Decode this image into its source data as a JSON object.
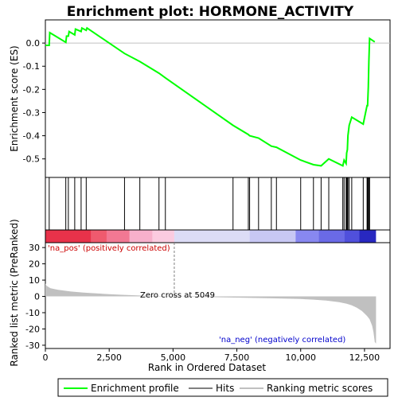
{
  "chart_data": {
    "type": "line",
    "title": "Enrichment plot: HORMONE_ACTIVITY",
    "xlabel": "Rank in Ordered Dataset",
    "xlim": [
      0,
      13500
    ],
    "x_ticks": [
      0,
      2500,
      5000,
      7500,
      10000,
      12500
    ],
    "x_tick_labels": [
      "0",
      "2,500",
      "5,000",
      "7,500",
      "10,000",
      "12,500"
    ],
    "top_panel": {
      "ylabel": "Enrichment score (ES)",
      "ylim": [
        -0.58,
        0.1
      ],
      "y_ticks": [
        0.0,
        -0.1,
        -0.2,
        -0.3,
        -0.4,
        -0.5
      ],
      "y_tick_labels": [
        "0.0",
        "-0.1",
        "-0.2",
        "-0.3",
        "-0.4",
        "-0.5"
      ],
      "series": [
        {
          "name": "Enrichment profile",
          "color": "#00ff00",
          "x": [
            0,
            150,
            170,
            800,
            830,
            900,
            930,
            1150,
            1180,
            1400,
            1430,
            1600,
            1630,
            3100,
            3700,
            4450,
            4700,
            7350,
            7950,
            8000,
            8350,
            8850,
            9050,
            10000,
            10500,
            10800,
            11100,
            11650,
            11700,
            11780,
            11800,
            11830,
            11850,
            11900,
            12000,
            12450,
            12600,
            12620,
            12650,
            12670,
            12700,
            12900
          ],
          "y": [
            -0.01,
            -0.01,
            0.045,
            0.003,
            0.03,
            0.03,
            0.05,
            0.035,
            0.06,
            0.05,
            0.065,
            0.055,
            0.065,
            -0.045,
            -0.08,
            -0.13,
            -0.15,
            -0.355,
            -0.395,
            -0.4,
            -0.41,
            -0.445,
            -0.45,
            -0.505,
            -0.525,
            -0.53,
            -0.5,
            -0.53,
            -0.505,
            -0.52,
            -0.475,
            -0.46,
            -0.4,
            -0.355,
            -0.32,
            -0.35,
            -0.27,
            -0.27,
            -0.19,
            -0.08,
            0.02,
            0.005
          ]
        }
      ]
    },
    "hits_panel": {
      "hit_ranks": [
        150,
        800,
        900,
        1150,
        1400,
        1600,
        3100,
        3700,
        4450,
        4700,
        7350,
        7950,
        8000,
        8350,
        8850,
        9050,
        10000,
        10500,
        10800,
        11100,
        11650,
        11700,
        11780,
        11800,
        11830,
        11850,
        11900,
        12000,
        12450,
        12600,
        12620,
        12650,
        12670,
        12700
      ]
    },
    "color_bar": {
      "segments": [
        {
          "from": 0,
          "to": 1800,
          "color": "#e8324a"
        },
        {
          "from": 1800,
          "to": 2400,
          "color": "#ef5a6e"
        },
        {
          "from": 2400,
          "to": 3300,
          "color": "#f27893"
        },
        {
          "from": 3300,
          "to": 4200,
          "color": "#f7b0cb"
        },
        {
          "from": 4200,
          "to": 5049,
          "color": "#fbcbe0"
        },
        {
          "from": 5049,
          "to": 8000,
          "color": "#dcdcf6"
        },
        {
          "from": 8000,
          "to": 9800,
          "color": "#c8c8f4"
        },
        {
          "from": 9800,
          "to": 10700,
          "color": "#8888f0"
        },
        {
          "from": 10700,
          "to": 11700,
          "color": "#6a6ae6"
        },
        {
          "from": 11700,
          "to": 12300,
          "color": "#5050dc"
        },
        {
          "from": 12300,
          "to": 12950,
          "color": "#2828c0"
        }
      ]
    },
    "bottom_panel": {
      "ylabel": "Ranked list metric (PreRanked)",
      "ylim": [
        -32,
        33
      ],
      "y_ticks": [
        30,
        20,
        10,
        0,
        -10,
        -20,
        -30
      ],
      "y_tick_labels": [
        "30",
        "20",
        "10",
        "0",
        "-10",
        "-20",
        "-30"
      ],
      "series": [
        {
          "name": "Ranking metric scores",
          "color": "#c0c0c0",
          "x": [
            0,
            50,
            200,
            500,
            1000,
            1500,
            2000,
            2500,
            3000,
            3500,
            4000,
            4500,
            5049,
            6000,
            7000,
            8000,
            9000,
            10000,
            10500,
            11000,
            11500,
            11800,
            12000,
            12200,
            12400,
            12600,
            12700,
            12800,
            12850,
            12900,
            12950
          ],
          "y": [
            8,
            6.5,
            5,
            4,
            3,
            2.3,
            1.8,
            1.4,
            1.0,
            0.7,
            0.4,
            0.2,
            0,
            -0.3,
            -0.6,
            -0.9,
            -1.2,
            -1.6,
            -2.0,
            -2.6,
            -3.5,
            -4.5,
            -5.5,
            -7,
            -9,
            -12,
            -14,
            -18,
            -22,
            -28,
            -29
          ]
        }
      ],
      "annotations": {
        "pos_label": "'na_pos' (positively correlated)",
        "neg_label": "'na_neg' (negatively correlated)",
        "zero_cross": "Zero cross at 5049",
        "zero_cross_rank": 5049
      }
    },
    "legend": {
      "placement": "bottom",
      "items": [
        {
          "label": "Enrichment profile",
          "color": "#00ff00",
          "kind": "line"
        },
        {
          "label": "Hits",
          "color": "#000000",
          "kind": "line"
        },
        {
          "label": "Ranking metric scores",
          "color": "#c0c0c0",
          "kind": "line"
        }
      ]
    }
  }
}
